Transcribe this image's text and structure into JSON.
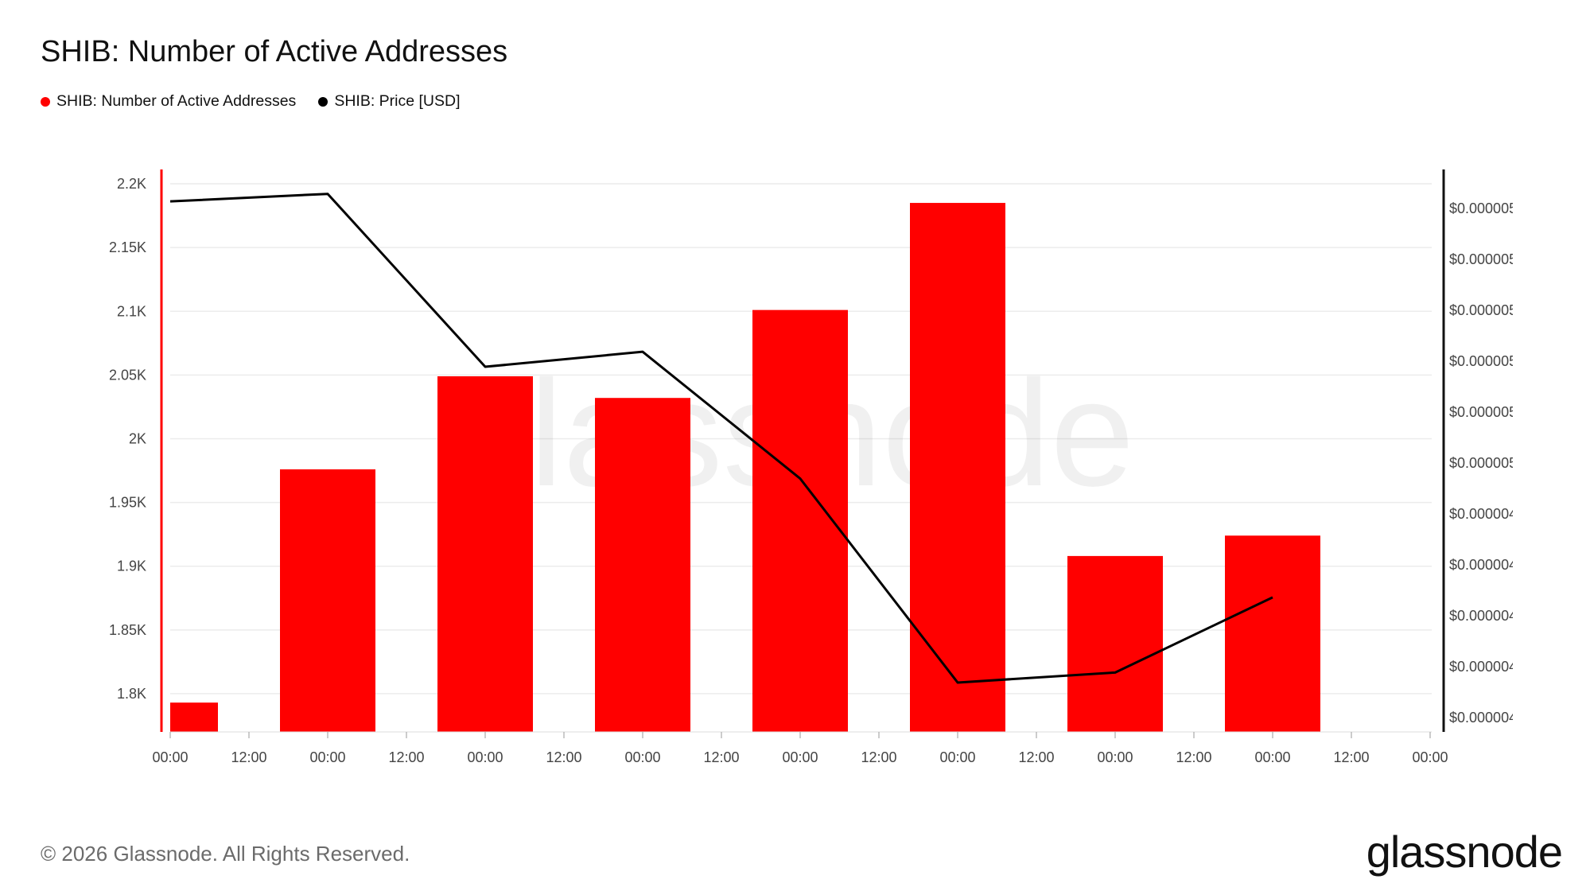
{
  "colors": {
    "bars": "#ff0000",
    "price_line": "#000000",
    "grid": "#ececec"
  },
  "footer": {
    "copyright": "© 2026 Glassnode. All Rights Reserved."
  },
  "brand": {
    "logo_text": "glassnode",
    "watermark": "glassnode"
  },
  "chart_data": {
    "type": "bar",
    "title": "SHIB: Number of Active Addresses",
    "legend": [
      {
        "label": "SHIB: Number of Active Addresses",
        "color": "#ff0000"
      },
      {
        "label": "SHIB: Price [USD]",
        "color": "#000000"
      }
    ],
    "x_tick_labels": [
      "00:00",
      "12:00",
      "00:00",
      "12:00",
      "00:00",
      "12:00",
      "00:00",
      "12:00",
      "00:00",
      "12:00",
      "00:00",
      "12:00",
      "00:00",
      "12:00",
      "00:00",
      "12:00",
      "00:00"
    ],
    "bars": {
      "name": "SHIB: Number of Active Addresses",
      "x_days": [
        0,
        1,
        2,
        3,
        4,
        5,
        6,
        7
      ],
      "values": [
        1793,
        1976,
        2049,
        2032,
        2101,
        2185,
        1908,
        1924
      ]
    },
    "price": {
      "name": "SHIB: Price [USD]",
      "x_days": [
        0,
        1,
        2,
        3,
        4,
        5,
        6,
        7
      ],
      "relative_values": [
        0.995,
        1.01,
        0.665,
        0.695,
        0.442,
        0.035,
        0.055,
        0.205
      ]
    },
    "y_left": {
      "ticks": [
        1800,
        1850,
        1900,
        1950,
        2000,
        2050,
        2100,
        2150,
        2200
      ],
      "tick_labels": [
        "1.8K",
        "1.85K",
        "1.9K",
        "1.95K",
        "2K",
        "2.05K",
        "2.1K",
        "2.15K",
        "2.2K"
      ],
      "range": [
        1770,
        2210
      ]
    },
    "y_right": {
      "tick_labels": [
        "$0.000005",
        "$0.000005",
        "$0.000005",
        "$0.000005",
        "$0.000005",
        "$0.000005",
        "$0.000004",
        "$0.000004",
        "$0.000004",
        "$0.000004",
        "$0.000004"
      ]
    },
    "grid": true,
    "legend_position": "top-left"
  }
}
